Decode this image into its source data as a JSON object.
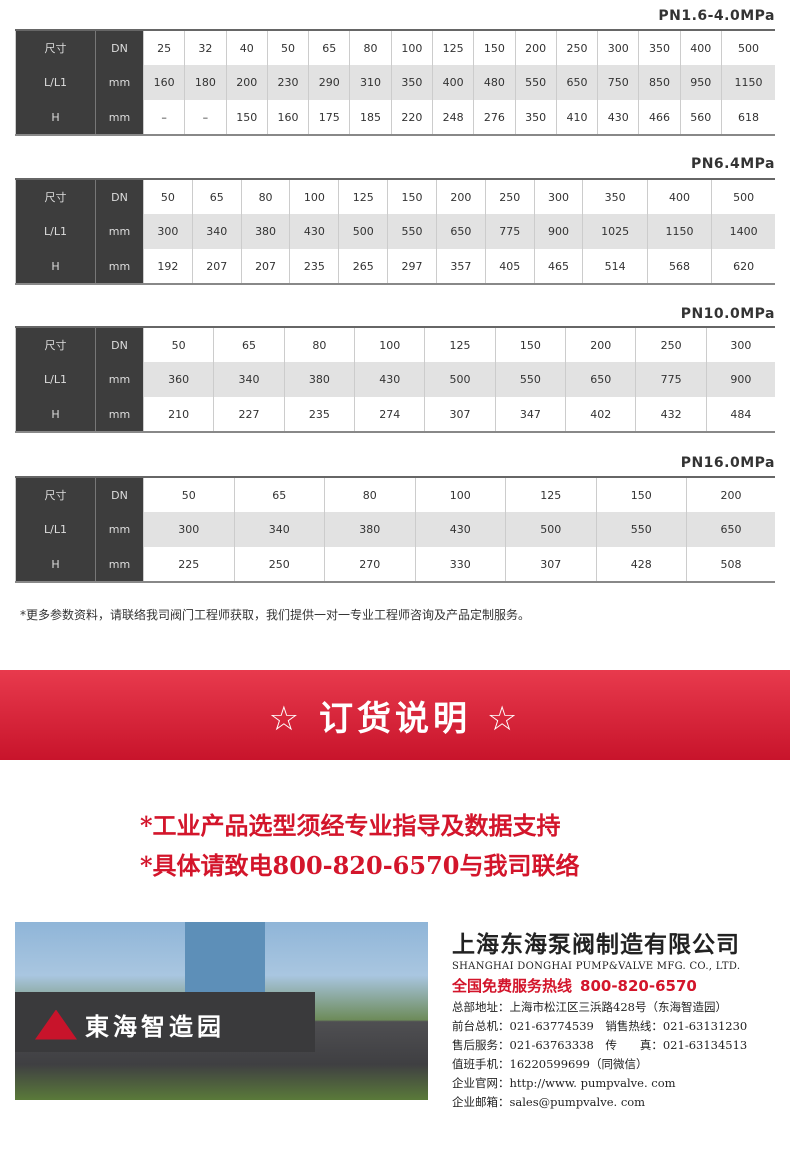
{
  "tables": [
    {
      "title": "PN1.6-4.0MPa",
      "row_labels": [
        [
          "尺寸",
          "DN"
        ],
        [
          "L/L1",
          "mm"
        ],
        [
          "H",
          "mm"
        ]
      ],
      "rows": [
        [
          "25",
          "32",
          "40",
          "50",
          "65",
          "80",
          "100",
          "125",
          "150",
          "200",
          "250",
          "300",
          "350",
          "400",
          "500"
        ],
        [
          "160",
          "180",
          "200",
          "230",
          "290",
          "310",
          "350",
          "400",
          "480",
          "550",
          "650",
          "750",
          "850",
          "950",
          "1150"
        ],
        [
          "–",
          "–",
          "150",
          "160",
          "175",
          "185",
          "220",
          "248",
          "276",
          "350",
          "410",
          "430",
          "466",
          "560",
          "618"
        ]
      ]
    },
    {
      "title": "PN6.4MPa",
      "row_labels": [
        [
          "尺寸",
          "DN"
        ],
        [
          "L/L1",
          "mm"
        ],
        [
          "H",
          "mm"
        ]
      ],
      "rows": [
        [
          "50",
          "65",
          "80",
          "100",
          "125",
          "150",
          "200",
          "250",
          "300",
          "350",
          "400",
          "500"
        ],
        [
          "300",
          "340",
          "380",
          "430",
          "500",
          "550",
          "650",
          "775",
          "900",
          "1025",
          "1150",
          "1400"
        ],
        [
          "192",
          "207",
          "207",
          "235",
          "265",
          "297",
          "357",
          "405",
          "465",
          "514",
          "568",
          "620"
        ]
      ]
    },
    {
      "title": "PN10.0MPa",
      "row_labels": [
        [
          "尺寸",
          "DN"
        ],
        [
          "L/L1",
          "mm"
        ],
        [
          "H",
          "mm"
        ]
      ],
      "rows": [
        [
          "50",
          "65",
          "80",
          "100",
          "125",
          "150",
          "200",
          "250",
          "300"
        ],
        [
          "360",
          "340",
          "380",
          "430",
          "500",
          "550",
          "650",
          "775",
          "900"
        ],
        [
          "210",
          "227",
          "235",
          "274",
          "307",
          "347",
          "402",
          "432",
          "484"
        ]
      ]
    },
    {
      "title": "PN16.0MPa",
      "row_labels": [
        [
          "尺寸",
          "DN"
        ],
        [
          "L/L1",
          "mm"
        ],
        [
          "H",
          "mm"
        ]
      ],
      "rows": [
        [
          "50",
          "65",
          "80",
          "100",
          "125",
          "150",
          "200"
        ],
        [
          "300",
          "340",
          "380",
          "430",
          "500",
          "550",
          "650"
        ],
        [
          "225",
          "250",
          "270",
          "330",
          "307",
          "428",
          "508"
        ]
      ]
    }
  ],
  "note": "*更多参数资料，请联络我司阀门工程师获取，我们提供一对一专业工程师咨询及产品定制服务。",
  "banner": {
    "title": "☆ 订货说明 ☆"
  },
  "red_lines": [
    "*工业产品选型须经专业指导及数据支持",
    "*具体请致电800-820-6570与我司联络"
  ],
  "photo": {
    "sign": "東海智造园"
  },
  "company": {
    "name_cn": "上海东海泵阀制造有限公司",
    "name_en": "SHANGHAI DONGHAI PUMP&VALVE MFG. CO., LTD.",
    "hotline_label": "全国免费服务热线",
    "hotline": "800-820-6570",
    "lines": [
      "总部地址：上海市松江区三浜路428号（东海智造园）",
      "前台总机：021-63774539　销售热线：021-63131230",
      "售后服务：021-63763338　传　　真：021-63134513",
      "值班手机：16220599699（同微信）",
      "企业官网：http://www. pumpvalve. com",
      "企业邮箱：sales@pumpvalve. com"
    ]
  },
  "colors": {
    "accent": "#d3152b",
    "header": "#3d3d3d"
  }
}
